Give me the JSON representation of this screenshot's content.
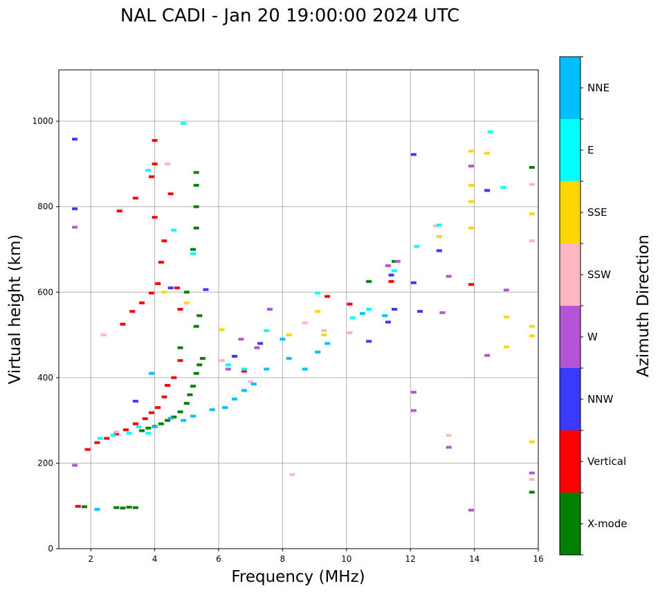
{
  "chart_data": {
    "type": "scatter",
    "title": "NAL CADI - Jan 20 19:00:00 2024 UTC",
    "xlabel": "Frequency (MHz)",
    "ylabel": "Virtual height (km)",
    "xlim": [
      1,
      16
    ],
    "ylim": [
      0,
      1120
    ],
    "xticks": [
      2,
      4,
      6,
      8,
      10,
      12,
      14,
      16
    ],
    "yticks": [
      0,
      200,
      400,
      600,
      800,
      1000
    ],
    "grid": true,
    "colorbar": {
      "label": "Azimuth Direction",
      "categories": [
        {
          "name": "X-mode",
          "color": "#008000"
        },
        {
          "name": "Vertical",
          "color": "#ff0000"
        },
        {
          "name": "NNW",
          "color": "#3a3aff"
        },
        {
          "name": "W",
          "color": "#b455d6"
        },
        {
          "name": "SSW",
          "color": "#ffb6c1"
        },
        {
          "name": "SSE",
          "color": "#ffd700"
        },
        {
          "name": "E",
          "color": "#00ffff"
        },
        {
          "name": "NNE",
          "color": "#00bfff"
        }
      ]
    },
    "series": [
      {
        "name": "X-mode",
        "points": [
          [
            1.8,
            98
          ],
          [
            2.8,
            96
          ],
          [
            3.0,
            95
          ],
          [
            3.2,
            97
          ],
          [
            3.4,
            96
          ],
          [
            3.6,
            276
          ],
          [
            3.8,
            282
          ],
          [
            4.0,
            286
          ],
          [
            4.2,
            292
          ],
          [
            4.4,
            300
          ],
          [
            4.6,
            308
          ],
          [
            4.8,
            320
          ],
          [
            5.0,
            340
          ],
          [
            5.1,
            360
          ],
          [
            5.2,
            380
          ],
          [
            5.3,
            410
          ],
          [
            5.4,
            430
          ],
          [
            5.5,
            445
          ],
          [
            4.8,
            470
          ],
          [
            5.3,
            520
          ],
          [
            5.4,
            545
          ],
          [
            5.0,
            600
          ],
          [
            5.2,
            700
          ],
          [
            5.3,
            750
          ],
          [
            5.3,
            800
          ],
          [
            5.3,
            850
          ],
          [
            5.3,
            880
          ],
          [
            15.8,
            892
          ],
          [
            15.8,
            132
          ],
          [
            11.5,
            672
          ],
          [
            10.7,
            625
          ]
        ]
      },
      {
        "name": "Vertical",
        "points": [
          [
            1.6,
            99
          ],
          [
            1.9,
            232
          ],
          [
            2.2,
            248
          ],
          [
            2.5,
            258
          ],
          [
            2.8,
            268
          ],
          [
            3.1,
            278
          ],
          [
            3.4,
            292
          ],
          [
            3.7,
            304
          ],
          [
            3.9,
            318
          ],
          [
            4.1,
            330
          ],
          [
            4.3,
            355
          ],
          [
            4.4,
            382
          ],
          [
            4.6,
            400
          ],
          [
            4.8,
            440
          ],
          [
            3.0,
            525
          ],
          [
            3.3,
            555
          ],
          [
            3.6,
            575
          ],
          [
            3.9,
            598
          ],
          [
            4.1,
            620
          ],
          [
            4.2,
            670
          ],
          [
            4.3,
            720
          ],
          [
            4.0,
            775
          ],
          [
            2.9,
            790
          ],
          [
            3.4,
            820
          ],
          [
            3.9,
            870
          ],
          [
            4.0,
            900
          ],
          [
            4.0,
            955
          ],
          [
            4.5,
            830
          ],
          [
            4.7,
            610
          ],
          [
            6.8,
            415
          ],
          [
            10.1,
            572
          ],
          [
            9.4,
            590
          ],
          [
            11.4,
            625
          ],
          [
            13.9,
            618
          ],
          [
            4.8,
            560
          ]
        ]
      },
      {
        "name": "NNW",
        "points": [
          [
            1.5,
            958
          ],
          [
            1.5,
            795
          ],
          [
            3.4,
            345
          ],
          [
            4.5,
            610
          ],
          [
            5.6,
            606
          ],
          [
            10.7,
            485
          ],
          [
            11.3,
            530
          ],
          [
            11.5,
            560
          ],
          [
            12.1,
            922
          ],
          [
            12.3,
            555
          ],
          [
            12.9,
            697
          ],
          [
            14.4,
            838
          ],
          [
            12.1,
            622
          ],
          [
            11.4,
            640
          ],
          [
            6.5,
            450
          ],
          [
            7.3,
            480
          ]
        ]
      },
      {
        "name": "W",
        "points": [
          [
            1.5,
            195
          ],
          [
            1.5,
            752
          ],
          [
            6.7,
            490
          ],
          [
            7.2,
            470
          ],
          [
            7.6,
            560
          ],
          [
            11.3,
            662
          ],
          [
            11.6,
            672
          ],
          [
            12.1,
            366
          ],
          [
            12.1,
            323
          ],
          [
            13.2,
            237
          ],
          [
            13.2,
            637
          ],
          [
            13.0,
            552
          ],
          [
            13.9,
            895
          ],
          [
            13.9,
            90
          ],
          [
            14.4,
            452
          ],
          [
            15.0,
            605
          ],
          [
            15.8,
            177
          ],
          [
            6.3,
            420
          ]
        ]
      },
      {
        "name": "SSW",
        "points": [
          [
            2.4,
            500
          ],
          [
            2.8,
            273
          ],
          [
            4.4,
            900
          ],
          [
            8.3,
            173
          ],
          [
            8.7,
            528
          ],
          [
            9.3,
            510
          ],
          [
            10.1,
            505
          ],
          [
            12.8,
            755
          ],
          [
            13.2,
            265
          ],
          [
            15.8,
            720
          ],
          [
            15.8,
            852
          ],
          [
            15.8,
            162
          ],
          [
            6.1,
            440
          ],
          [
            7.0,
            390
          ]
        ]
      },
      {
        "name": "SSE",
        "points": [
          [
            4.3,
            600
          ],
          [
            5.0,
            575
          ],
          [
            6.1,
            512
          ],
          [
            9.1,
            555
          ],
          [
            9.3,
            500
          ],
          [
            12.9,
            730
          ],
          [
            13.9,
            930
          ],
          [
            13.9,
            850
          ],
          [
            13.9,
            812
          ],
          [
            13.9,
            750
          ],
          [
            14.4,
            925
          ],
          [
            15.0,
            542
          ],
          [
            15.0,
            472
          ],
          [
            15.8,
            520
          ],
          [
            15.8,
            498
          ],
          [
            15.8,
            783
          ],
          [
            15.8,
            250
          ],
          [
            8.2,
            500
          ]
        ]
      },
      {
        "name": "E",
        "points": [
          [
            2.3,
            258
          ],
          [
            2.7,
            265
          ],
          [
            3.2,
            270
          ],
          [
            3.5,
            285
          ],
          [
            3.8,
            270
          ],
          [
            4.9,
            995
          ],
          [
            5.2,
            690
          ],
          [
            4.6,
            745
          ],
          [
            6.3,
            430
          ],
          [
            6.8,
            420
          ],
          [
            7.5,
            510
          ],
          [
            9.1,
            598
          ],
          [
            10.2,
            540
          ],
          [
            10.7,
            560
          ],
          [
            11.5,
            650
          ],
          [
            12.2,
            707
          ],
          [
            12.9,
            757
          ],
          [
            14.5,
            975
          ],
          [
            14.9,
            845
          ],
          [
            3.8,
            885
          ]
        ]
      },
      {
        "name": "NNE",
        "points": [
          [
            2.2,
            92
          ],
          [
            4.0,
            285
          ],
          [
            4.5,
            305
          ],
          [
            4.9,
            300
          ],
          [
            5.2,
            310
          ],
          [
            5.8,
            325
          ],
          [
            6.2,
            330
          ],
          [
            6.5,
            350
          ],
          [
            6.8,
            370
          ],
          [
            7.1,
            385
          ],
          [
            7.5,
            420
          ],
          [
            8.2,
            445
          ],
          [
            8.7,
            420
          ],
          [
            9.1,
            460
          ],
          [
            9.4,
            480
          ],
          [
            10.5,
            550
          ],
          [
            11.2,
            545
          ],
          [
            3.9,
            410
          ],
          [
            8.0,
            490
          ]
        ]
      }
    ]
  }
}
